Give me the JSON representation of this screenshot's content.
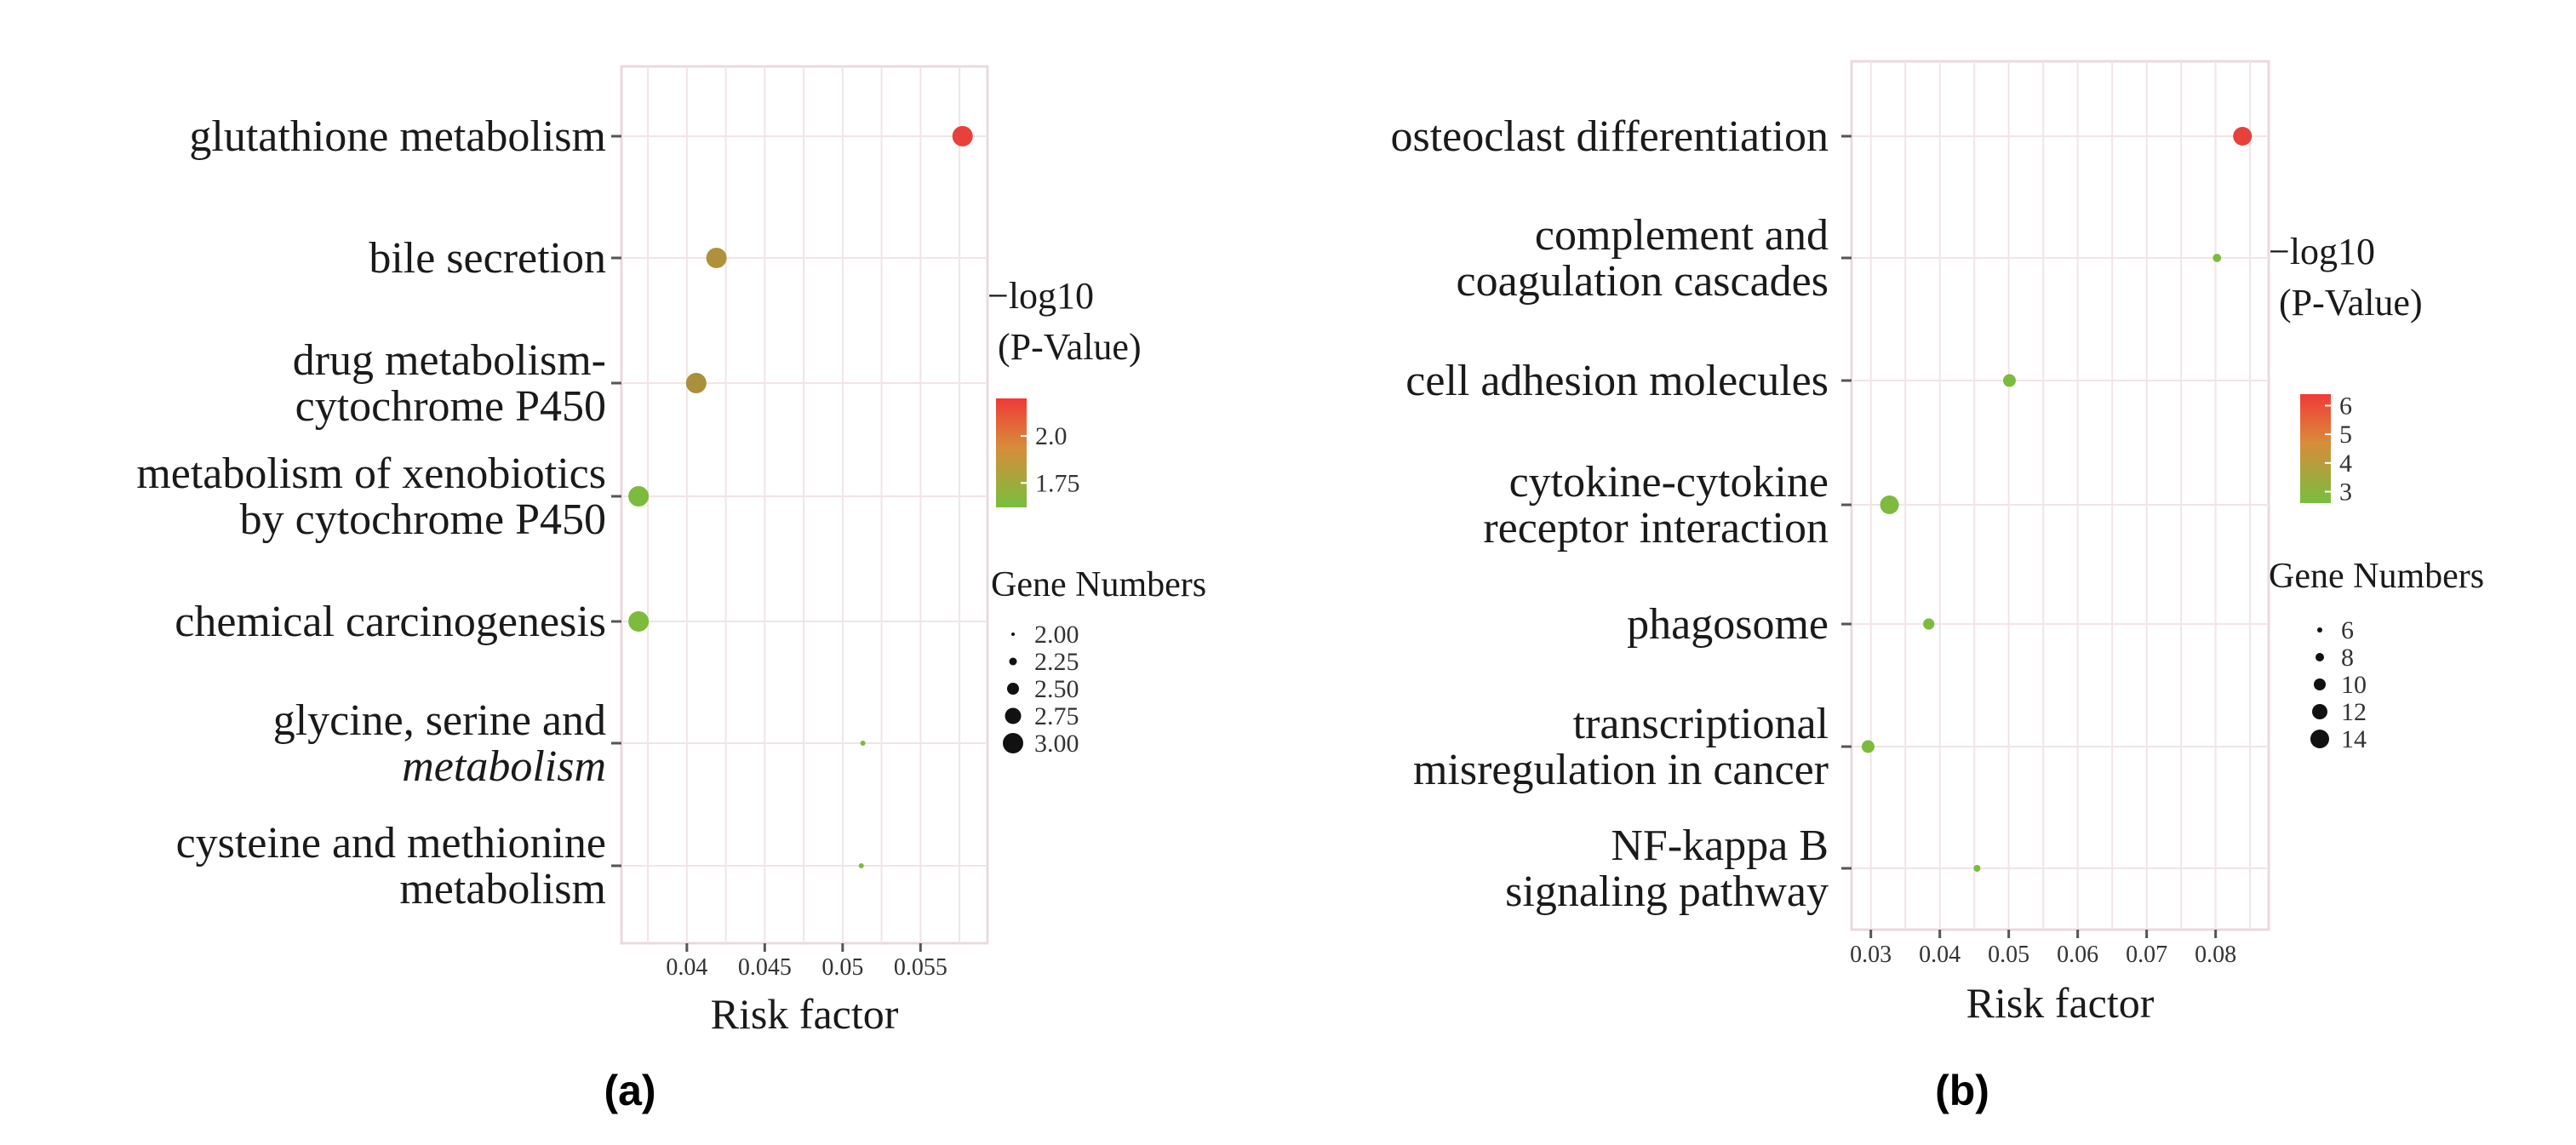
{
  "chart_data": [
    {
      "type": "scatter",
      "panel_label": "(a)",
      "xlabel": "Risk factor",
      "ylabel": "",
      "xlim": [
        0.0358,
        0.0593
      ],
      "xticks": [
        0.04,
        0.045,
        0.05,
        0.055
      ],
      "xtick_labels": [
        "0.04",
        "0.045",
        "0.05",
        "0.055"
      ],
      "categories": [
        {
          "lines": [
            "glutathione metabolism"
          ]
        },
        {
          "lines": [
            "bile secretion"
          ]
        },
        {
          "lines": [
            "drug metabolism-",
            "cytochrome P450"
          ]
        },
        {
          "lines": [
            "metabolism of xenobiotics",
            "by cytochrome P450"
          ]
        },
        {
          "lines": [
            "chemical carcinogenesis"
          ]
        },
        {
          "lines": [
            "glycine, serine and",
            "metabolism"
          ]
        },
        {
          "lines": [
            "cysteine and methionine",
            "metabolism"
          ]
        }
      ],
      "points": [
        {
          "category": 0,
          "x": 0.0577,
          "pvalue": 2.12,
          "genes": 3.0,
          "color": "#e8403a"
        },
        {
          "category": 1,
          "x": 0.0419,
          "pvalue": 1.92,
          "genes": 3.0,
          "color": "#b0903a"
        },
        {
          "category": 2,
          "x": 0.0406,
          "pvalue": 1.9,
          "genes": 3.0,
          "color": "#aa8f3c"
        },
        {
          "category": 3,
          "x": 0.0369,
          "pvalue": 1.66,
          "genes": 3.0,
          "color": "#7dba3e"
        },
        {
          "category": 4,
          "x": 0.0369,
          "pvalue": 1.66,
          "genes": 3.0,
          "color": "#7dba3e"
        },
        {
          "category": 5,
          "x": 0.0513,
          "pvalue": 1.66,
          "genes": 2.0,
          "color": "#7dba3e"
        },
        {
          "category": 6,
          "x": 0.0512,
          "pvalue": 1.66,
          "genes": 2.0,
          "color": "#7dba3e"
        }
      ],
      "colorbar": {
        "title_lines": [
          "−log10",
          "(P-Value)"
        ],
        "range": [
          1.62,
          2.2
        ],
        "colors": [
          "#77bf3f",
          "#d88c3a",
          "#f03a37"
        ],
        "ticks": [
          2.0,
          1.75
        ],
        "tick_labels": [
          "2.0",
          "1.75"
        ]
      },
      "size_legend": {
        "title": "Gene Numbers",
        "values": [
          2.0,
          2.25,
          2.5,
          2.75,
          3.0
        ],
        "labels": [
          "2.00",
          "2.25",
          "2.50",
          "2.75",
          "3.00"
        ]
      }
    },
    {
      "type": "scatter",
      "panel_label": "(b)",
      "xlabel": "Risk factor",
      "ylabel": "",
      "xlim": [
        0.0272,
        0.0877
      ],
      "xticks": [
        0.03,
        0.04,
        0.05,
        0.06,
        0.07,
        0.08
      ],
      "xtick_labels": [
        "0.03",
        "0.04",
        "0.05",
        "0.06",
        "0.07",
        "0.08"
      ],
      "categories": [
        {
          "lines": [
            "osteoclast differentiation"
          ]
        },
        {
          "lines": [
            "complement and",
            "coagulation cascades"
          ]
        },
        {
          "lines": [
            "cell adhesion molecules"
          ]
        },
        {
          "lines": [
            "cytokine-cytokine",
            "receptor interaction"
          ]
        },
        {
          "lines": [
            "phagosome"
          ]
        },
        {
          "lines": [
            "transcriptional",
            "misregulation in cancer"
          ]
        },
        {
          "lines": [
            "NF-kappa B",
            "signaling pathway"
          ]
        }
      ],
      "points": [
        {
          "category": 0,
          "x": 0.0839,
          "pvalue": 6.0,
          "genes": 14,
          "color": "#e8403a"
        },
        {
          "category": 1,
          "x": 0.0802,
          "pvalue": 2.9,
          "genes": 7,
          "color": "#7dba3e"
        },
        {
          "category": 2,
          "x": 0.0501,
          "pvalue": 2.9,
          "genes": 10,
          "color": "#7dba3e"
        },
        {
          "category": 3,
          "x": 0.0327,
          "pvalue": 2.9,
          "genes": 14,
          "color": "#7dba3e"
        },
        {
          "category": 4,
          "x": 0.0384,
          "pvalue": 2.9,
          "genes": 9,
          "color": "#7dba3e"
        },
        {
          "category": 5,
          "x": 0.0296,
          "pvalue": 2.9,
          "genes": 10,
          "color": "#7dba3e"
        },
        {
          "category": 6,
          "x": 0.0454,
          "pvalue": 2.9,
          "genes": 6,
          "color": "#7dba3e"
        }
      ],
      "colorbar": {
        "title_lines": [
          "−log10",
          "(P-Value)"
        ],
        "range": [
          2.6,
          6.4
        ],
        "colors": [
          "#77bf3f",
          "#d88c3a",
          "#f03a37"
        ],
        "ticks": [
          6,
          5,
          4,
          3
        ],
        "tick_labels": [
          "6",
          "5",
          "4",
          "3"
        ]
      },
      "size_legend": {
        "title": "Gene Numbers",
        "values": [
          6,
          8,
          10,
          12,
          14
        ],
        "labels": [
          "6",
          "8",
          "10",
          "12",
          "14"
        ]
      }
    }
  ]
}
